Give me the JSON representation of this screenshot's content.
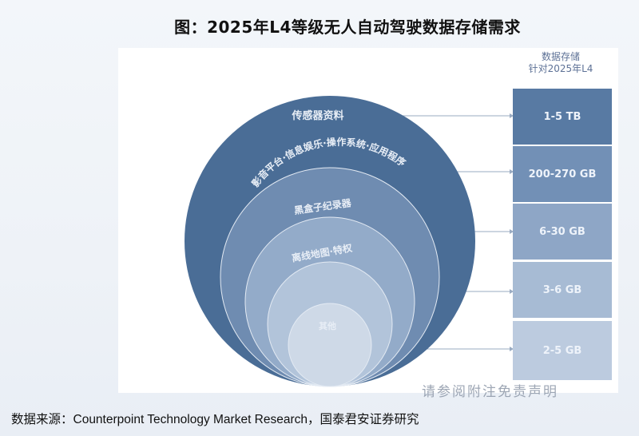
{
  "title": "图：2025年L4等级无人自动驾驶数据存储需求",
  "column_header": {
    "line1": "数据存储",
    "line2": "针对2025年L4"
  },
  "layers": [
    {
      "label": "传感器资料",
      "storage": "1-5 TB",
      "color": "#4a6d96",
      "box_color": "#587aa3"
    },
    {
      "label": "影音平台·信息娱乐·操作系统·应用程序",
      "storage": "200-270 GB",
      "color": "#6f8cb1",
      "box_color": "#7290b6"
    },
    {
      "label": "黑盒子纪录器",
      "storage": "6-30 GB",
      "color": "#93abc9",
      "box_color": "#8ea6c6"
    },
    {
      "label": "离线地图·特权",
      "storage": "3-6 GB",
      "color": "#b2c4da",
      "box_color": "#a7bbd4"
    },
    {
      "label": "其他",
      "storage": "2-5 GB",
      "color": "#ced9e7",
      "box_color": "#bccbdf"
    }
  ],
  "watermark": "请参阅附注免责声明",
  "source": "数据来源：Counterpoint Technology Market Research，国泰君安证券研究"
}
